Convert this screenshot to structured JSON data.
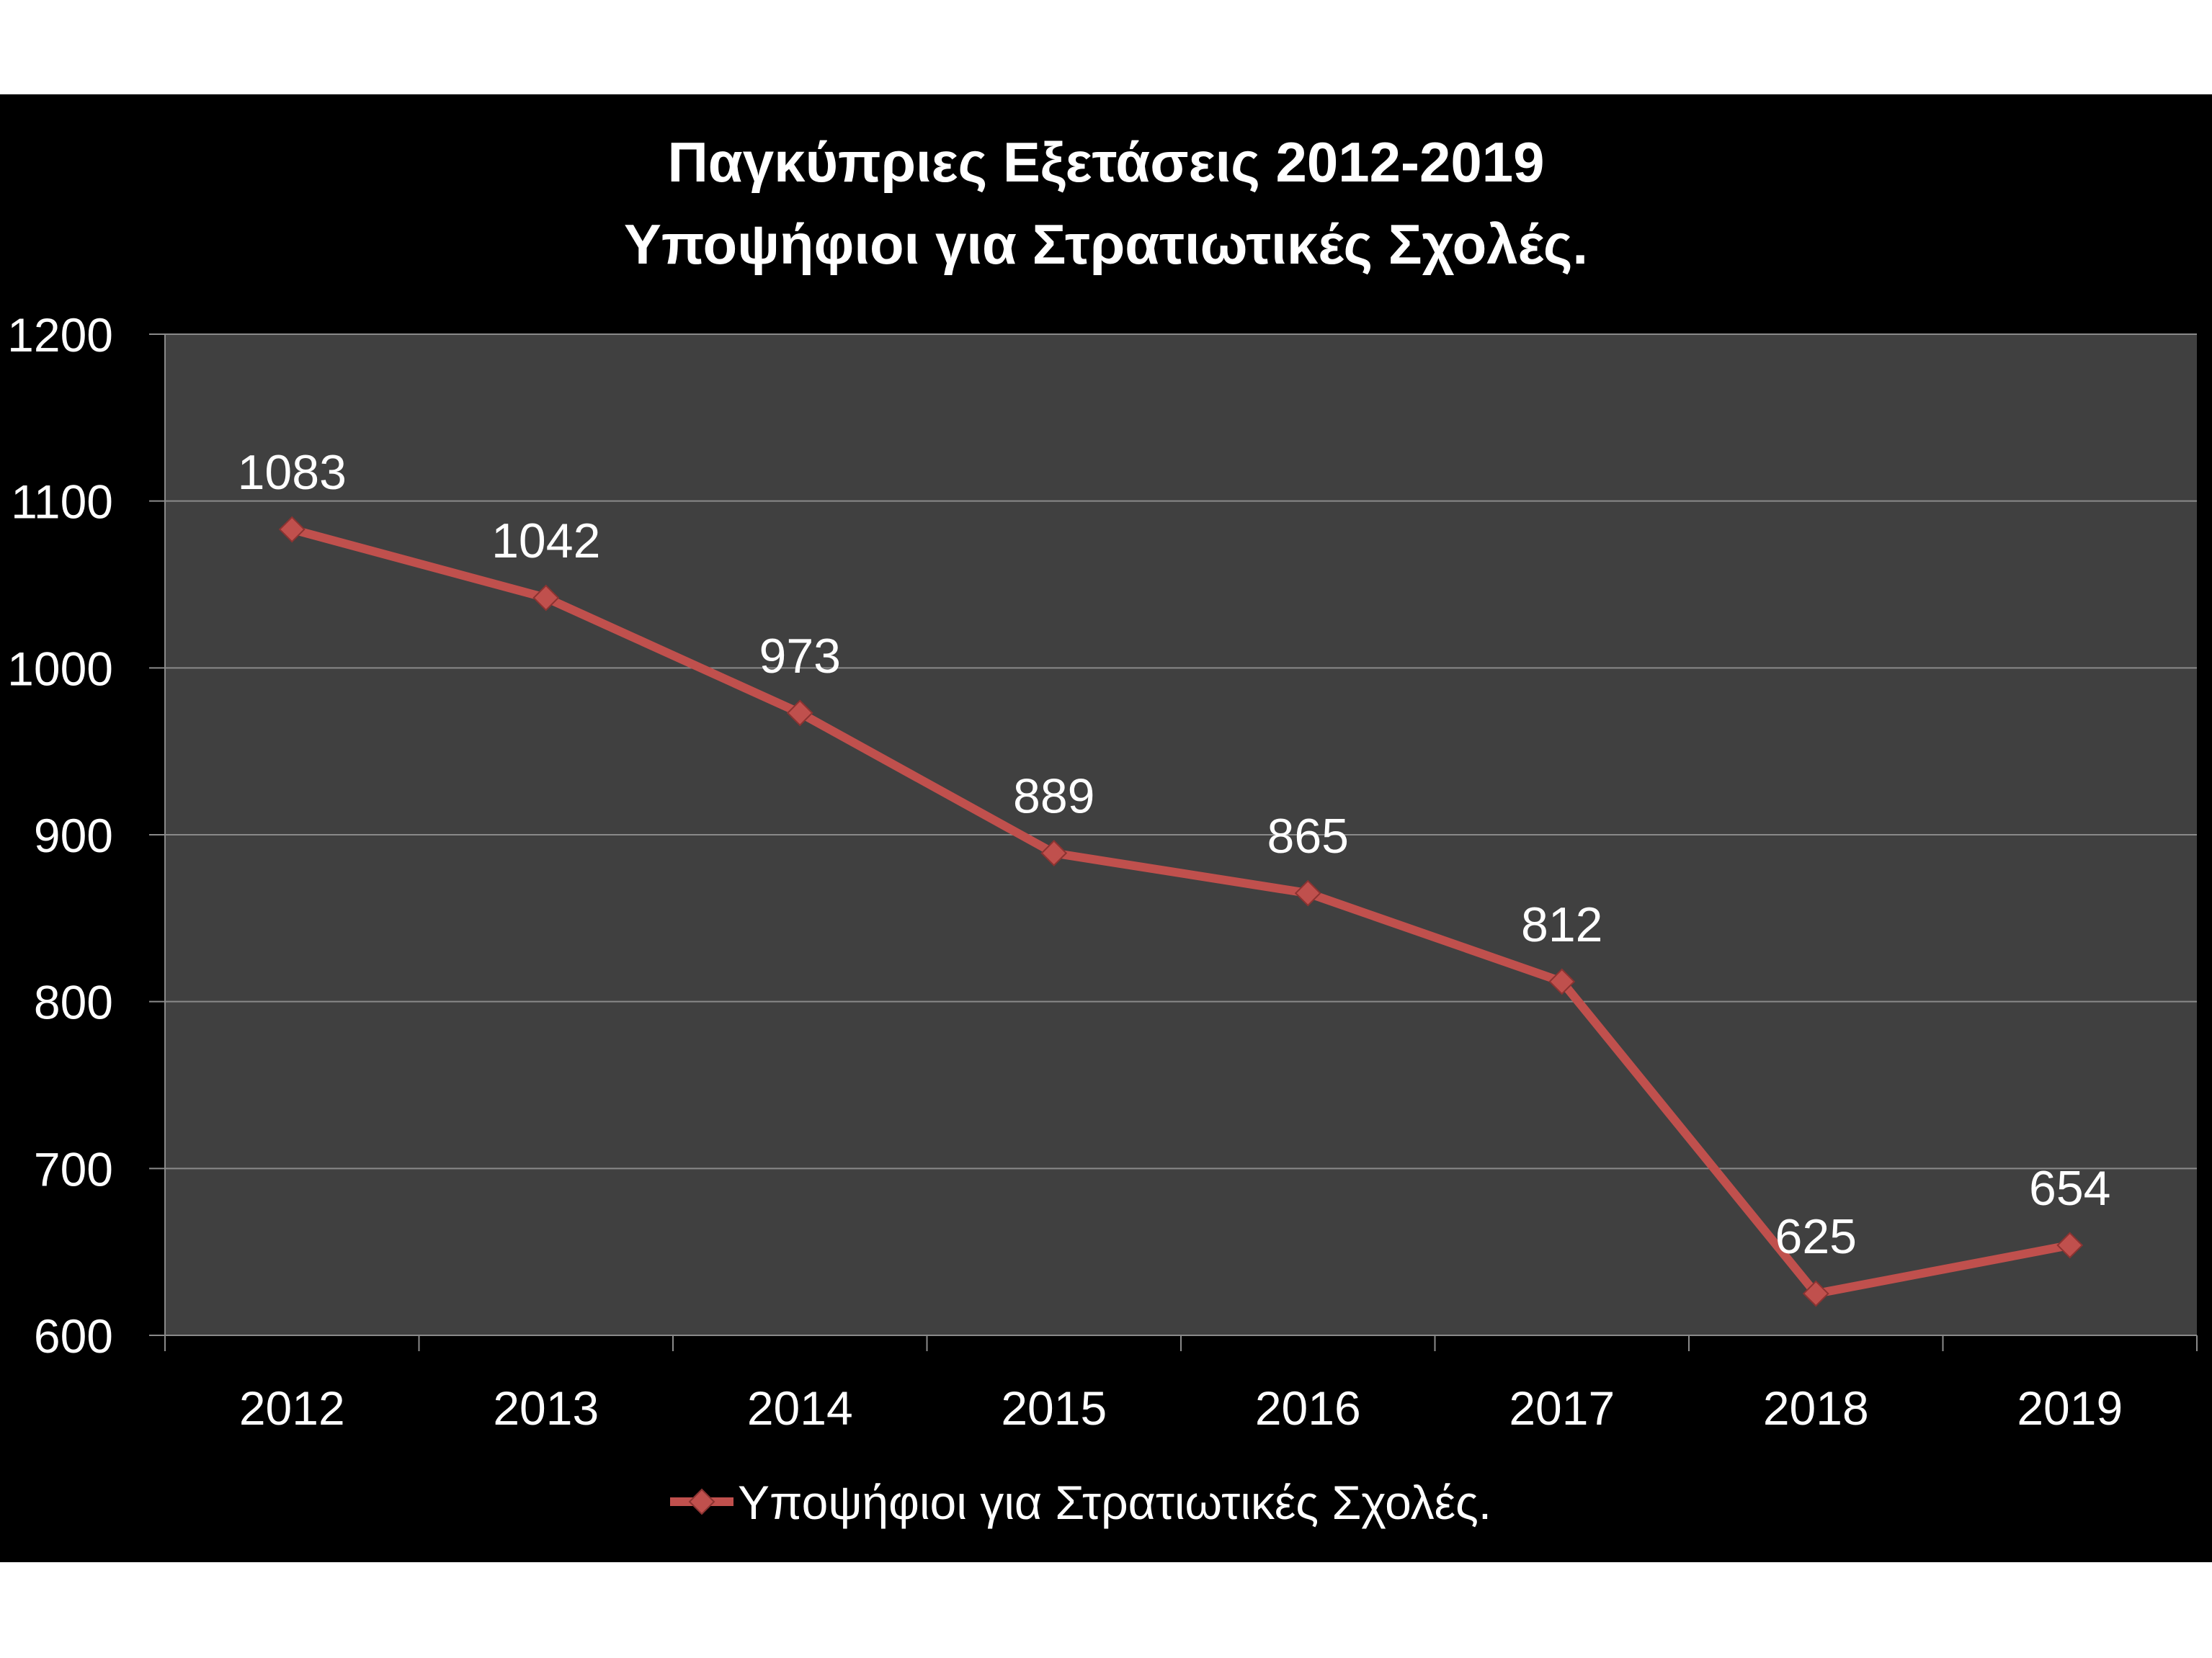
{
  "chart_data": {
    "type": "line",
    "title": "Παγκύπριες Εξετάσεις 2012-2019",
    "subtitle": "Υποψήφιοι για Στρατιωτικές Σχολές.",
    "categories": [
      "2012",
      "2013",
      "2014",
      "2015",
      "2016",
      "2017",
      "2018",
      "2019"
    ],
    "series": [
      {
        "name": "Υποψήφιοι για Στρατιωτικές Σχολές.",
        "values": [
          1083,
          1042,
          973,
          889,
          865,
          812,
          625,
          654
        ],
        "marker": "diamond",
        "data_labels": true
      }
    ],
    "ylim": [
      600,
      1200
    ],
    "yticks": [
      600,
      700,
      800,
      900,
      1000,
      1100,
      1200
    ],
    "grid": true,
    "legend": "bottom"
  },
  "colors": {
    "page": "#ffffff",
    "chart_background": "#000000",
    "plot_background": "#404040",
    "gridline": "#8a8a8a",
    "text": "#ffffff",
    "series": "#c0504d",
    "series_edge": "#8c3331"
  }
}
